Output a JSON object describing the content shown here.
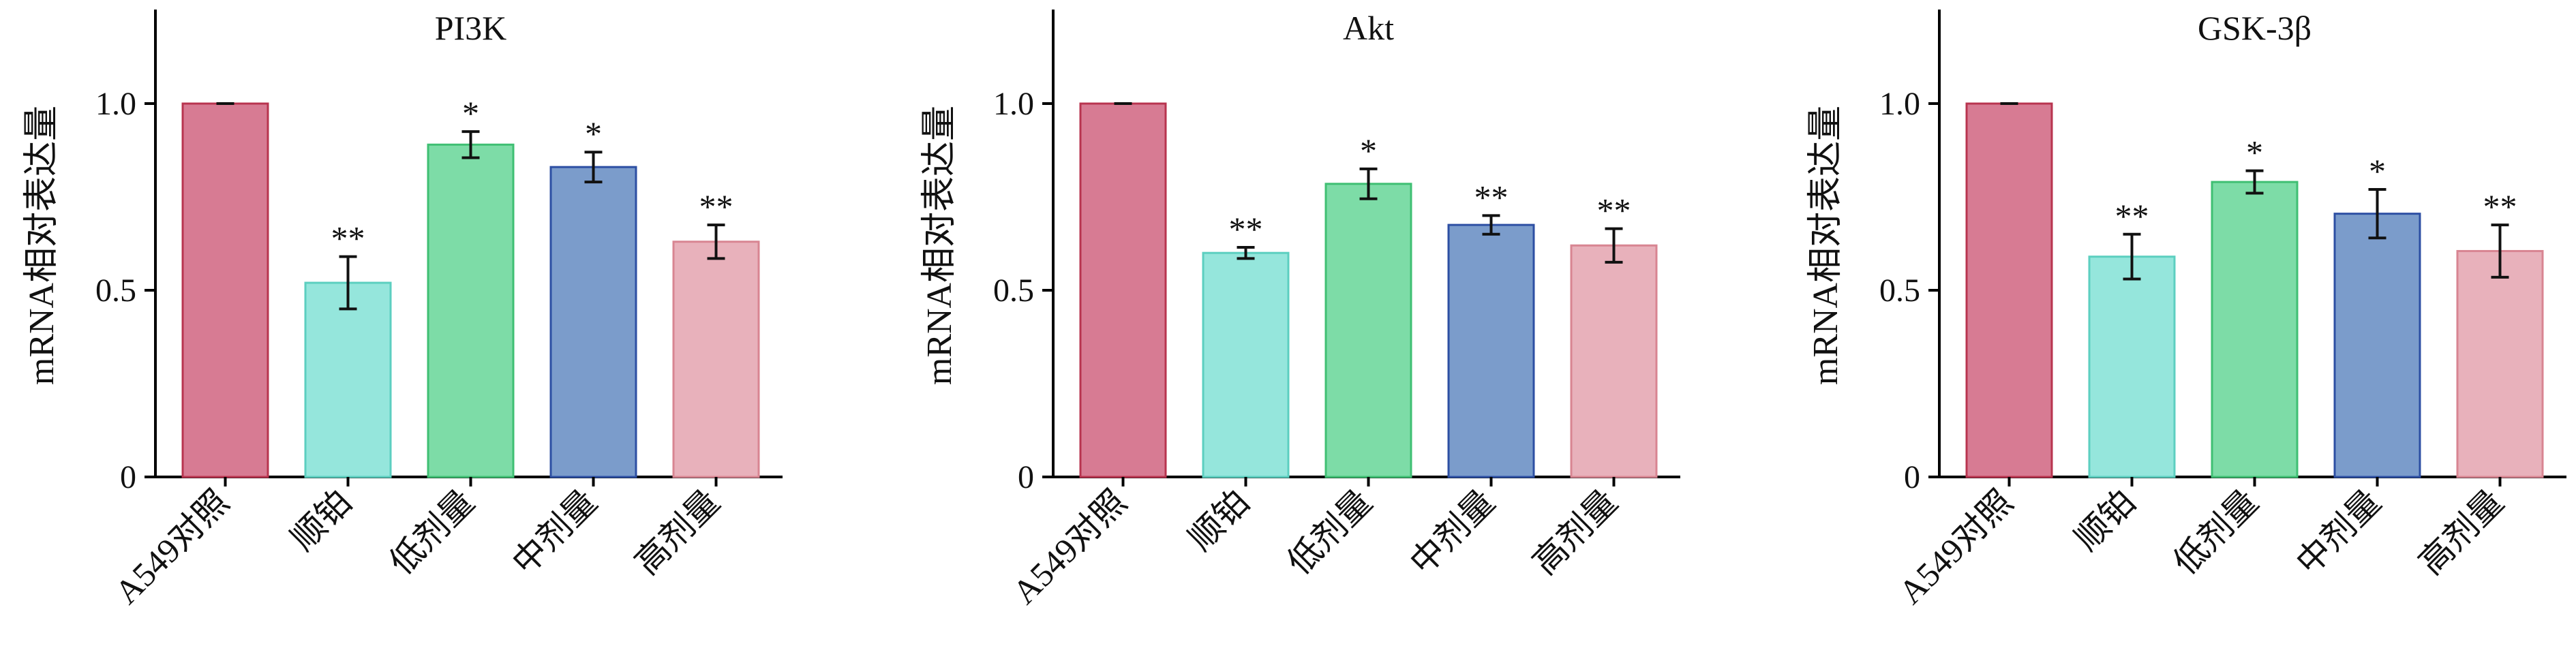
{
  "chart_data": [
    {
      "type": "bar",
      "title": "PI3K",
      "ylabel": "mRNA相对表达量",
      "xlabel": "",
      "ylim": [
        0,
        1.25
      ],
      "yticks": [
        "0",
        "0.5",
        "1.0"
      ],
      "categories": [
        "A549对照",
        "顺铂",
        "低剂量",
        "中剂量",
        "高剂量"
      ],
      "values": [
        1.0,
        0.52,
        0.89,
        0.83,
        0.63
      ],
      "errors": [
        0.0,
        0.07,
        0.035,
        0.04,
        0.045
      ],
      "significance": [
        "",
        "**",
        "*",
        "*",
        "**"
      ]
    },
    {
      "type": "bar",
      "title": "Akt",
      "ylabel": "mRNA相对表达量",
      "xlabel": "",
      "ylim": [
        0,
        1.25
      ],
      "yticks": [
        "0",
        "0.5",
        "1.0"
      ],
      "categories": [
        "A549对照",
        "顺铂",
        "低剂量",
        "中剂量",
        "高剂量"
      ],
      "values": [
        1.0,
        0.6,
        0.785,
        0.675,
        0.62
      ],
      "errors": [
        0.0,
        0.015,
        0.04,
        0.025,
        0.045
      ],
      "significance": [
        "",
        "**",
        "*",
        "**",
        "**"
      ]
    },
    {
      "type": "bar",
      "title": "GSK-3β",
      "ylabel": "mRNA相对表达量",
      "xlabel": "",
      "ylim": [
        0,
        1.25
      ],
      "yticks": [
        "0",
        "0.5",
        "1.0"
      ],
      "categories": [
        "A549对照",
        "顺铂",
        "低剂量",
        "中剂量",
        "高剂量"
      ],
      "values": [
        1.0,
        0.59,
        0.79,
        0.705,
        0.605
      ],
      "errors": [
        0.0,
        0.06,
        0.03,
        0.065,
        0.07
      ],
      "significance": [
        "",
        "**",
        "*",
        "*",
        "**"
      ]
    }
  ],
  "colors": {
    "fills": [
      "#d77b93",
      "#95e6dc",
      "#7ddca7",
      "#7b9ccb",
      "#e8b1bb"
    ],
    "strokes": [
      "#b8344f",
      "#5ccfc0",
      "#3fbf73",
      "#2d4fa3",
      "#d88592"
    ]
  }
}
